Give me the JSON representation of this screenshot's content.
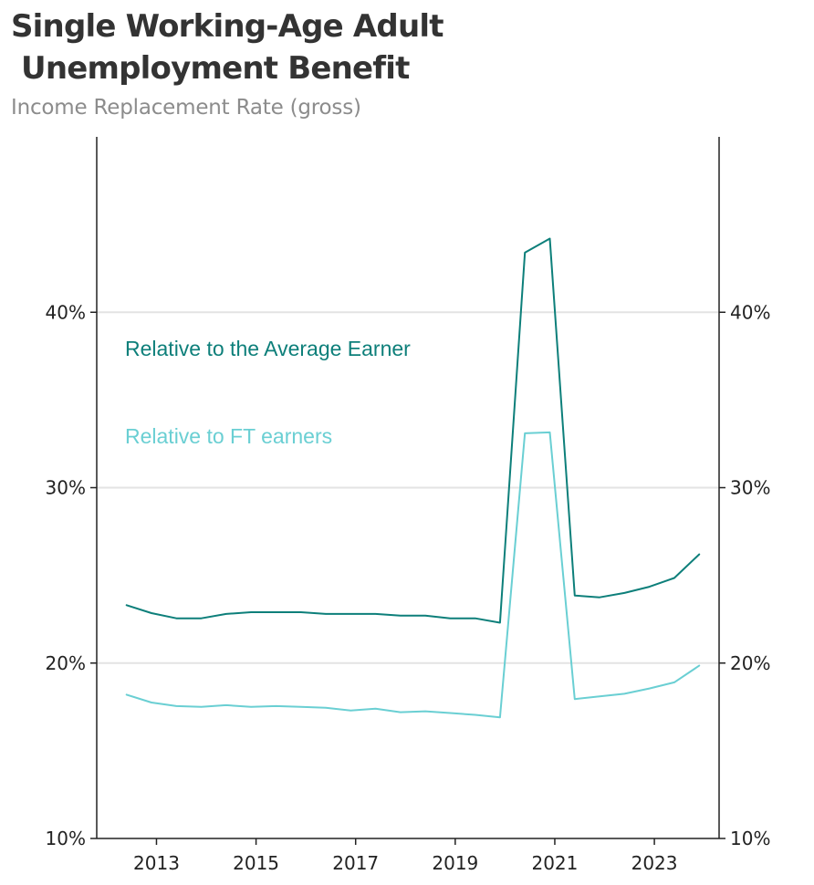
{
  "title": "Single Working-Age Adult\n Unemployment Benefit",
  "subtitle": "Income Replacement Rate (gross)",
  "chart_data": {
    "type": "line",
    "title": "Single Working-Age Adult Unemployment Benefit",
    "subtitle": "Income Replacement Rate (gross)",
    "xlabel": "",
    "ylabel": "",
    "xlim": [
      2011.8,
      2024.3
    ],
    "ylim": [
      10,
      50
    ],
    "x_ticks": [
      "2013",
      "2015",
      "2017",
      "2019",
      "2021",
      "2023"
    ],
    "y_ticks": [
      "10%",
      "20%",
      "30%",
      "40%"
    ],
    "grid": "horizontal",
    "series": [
      {
        "name": "Relative to the Average Earner",
        "color": "#0d7f7a",
        "points": [
          [
            2012.4,
            23.3
          ],
          [
            2012.9,
            22.85
          ],
          [
            2013.4,
            22.55
          ],
          [
            2013.9,
            22.55
          ],
          [
            2014.4,
            22.8
          ],
          [
            2014.9,
            22.9
          ],
          [
            2015.4,
            22.9
          ],
          [
            2015.9,
            22.9
          ],
          [
            2016.4,
            22.8
          ],
          [
            2016.9,
            22.8
          ],
          [
            2017.4,
            22.8
          ],
          [
            2017.9,
            22.7
          ],
          [
            2018.4,
            22.7
          ],
          [
            2018.9,
            22.55
          ],
          [
            2019.4,
            22.55
          ],
          [
            2019.9,
            22.3
          ],
          [
            2020.4,
            43.4
          ],
          [
            2020.9,
            44.2
          ],
          [
            2021.4,
            23.85
          ],
          [
            2021.9,
            23.75
          ],
          [
            2022.4,
            24.0
          ],
          [
            2022.9,
            24.35
          ],
          [
            2023.4,
            24.85
          ],
          [
            2023.9,
            26.2
          ]
        ]
      },
      {
        "name": "Relative to FT earners",
        "color": "#6acfd3",
        "points": [
          [
            2012.4,
            18.2
          ],
          [
            2012.9,
            17.75
          ],
          [
            2013.4,
            17.55
          ],
          [
            2013.9,
            17.5
          ],
          [
            2014.4,
            17.6
          ],
          [
            2014.9,
            17.5
          ],
          [
            2015.4,
            17.55
          ],
          [
            2015.9,
            17.5
          ],
          [
            2016.4,
            17.45
          ],
          [
            2016.9,
            17.3
          ],
          [
            2017.4,
            17.4
          ],
          [
            2017.9,
            17.2
          ],
          [
            2018.4,
            17.25
          ],
          [
            2018.9,
            17.15
          ],
          [
            2019.4,
            17.05
          ],
          [
            2019.9,
            16.9
          ],
          [
            2020.4,
            33.1
          ],
          [
            2020.9,
            33.15
          ],
          [
            2021.4,
            17.95
          ],
          [
            2021.9,
            18.1
          ],
          [
            2022.4,
            18.25
          ],
          [
            2022.9,
            18.55
          ],
          [
            2023.4,
            18.9
          ],
          [
            2023.9,
            19.85
          ]
        ]
      }
    ]
  }
}
